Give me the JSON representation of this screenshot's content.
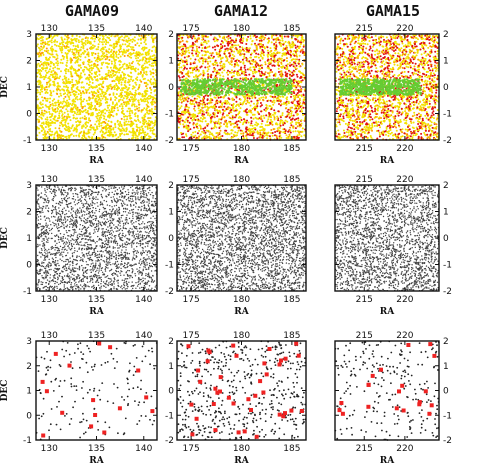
{
  "figure": {
    "columns": [
      {
        "title": "GAMA09",
        "xticks": [
          130,
          135,
          140
        ],
        "xlim": [
          128.6,
          141.4
        ],
        "yticks": [
          -1,
          0,
          1,
          2,
          3
        ],
        "ylim": [
          -1,
          3
        ]
      },
      {
        "title": "GAMA12",
        "xticks": [
          175,
          180,
          185
        ],
        "xlim": [
          173.6,
          186.4
        ],
        "yticks": [
          -2,
          -1,
          0,
          1,
          2
        ],
        "ylim": [
          -2,
          2
        ]
      },
      {
        "title": "GAMA15",
        "xticks": [
          215,
          220
        ],
        "xlim": [
          211.4,
          224.2
        ],
        "yticks": [
          -2,
          -1,
          0,
          1,
          2
        ],
        "ylim": [
          -2,
          2
        ]
      }
    ],
    "xlabel": "RA",
    "ylabel": "DEC",
    "colors": {
      "yellow": "#f2e200",
      "orange": "#ff9900",
      "red": "#e01010",
      "green": "#66cc33",
      "grey": "#444444",
      "marker_red": "#ee2222",
      "frame": "#111111"
    }
  },
  "chart_data": [
    {
      "type": "scatter",
      "panel": "GAMA09 row1",
      "xlabel": "RA",
      "ylabel": "DEC",
      "xlim": [
        128.6,
        141.4
      ],
      "ylim": [
        -1,
        3
      ],
      "series": [
        {
          "color": "#f2e200",
          "density": "very dense",
          "x_range": [
            129,
            141
          ],
          "y_range": [
            -1,
            3
          ]
        }
      ]
    },
    {
      "type": "scatter",
      "panel": "GAMA12 row1",
      "xlabel": "RA",
      "ylabel": "",
      "xlim": [
        173.6,
        186.4
      ],
      "ylim": [
        -2,
        2
      ],
      "series": [
        {
          "color": "#f2e200",
          "density": "very dense",
          "x_range": [
            174,
            186
          ],
          "y_range": [
            -2,
            2
          ]
        },
        {
          "color": "#e01010",
          "density": "dense",
          "x_range": [
            174,
            186
          ],
          "y_range": [
            -2,
            2
          ]
        },
        {
          "color": "#66cc33",
          "density": "band",
          "x_range": [
            174,
            185
          ],
          "y_range": [
            -0.3,
            0.3
          ]
        }
      ]
    },
    {
      "type": "scatter",
      "panel": "GAMA15 row1",
      "xlabel": "RA",
      "ylabel": "",
      "xlim": [
        211.4,
        224.2
      ],
      "ylim": [
        -2,
        2
      ],
      "series": [
        {
          "color": "#f2e200",
          "density": "very dense",
          "x_range": [
            212,
            224
          ],
          "y_range": [
            -2,
            2
          ]
        },
        {
          "color": "#e01010",
          "density": "dense",
          "x_range": [
            212,
            224
          ],
          "y_range": [
            -2,
            2
          ]
        },
        {
          "color": "#66cc33",
          "density": "band",
          "x_range": [
            212,
            222
          ],
          "y_range": [
            -0.3,
            0.3
          ]
        }
      ]
    },
    {
      "type": "scatter",
      "panel": "GAMA09 row2",
      "xlabel": "RA",
      "ylabel": "DEC",
      "xlim": [
        128.6,
        141.4
      ],
      "ylim": [
        -1,
        3
      ],
      "series": [
        {
          "color": "#444444",
          "density": "very dense",
          "x_range": [
            129,
            141
          ],
          "y_range": [
            -1,
            3
          ]
        }
      ]
    },
    {
      "type": "scatter",
      "panel": "GAMA12 row2",
      "xlabel": "RA",
      "ylabel": "",
      "xlim": [
        173.6,
        186.4
      ],
      "ylim": [
        -2,
        2
      ],
      "series": [
        {
          "color": "#444444",
          "density": "very dense",
          "x_range": [
            174,
            186
          ],
          "y_range": [
            -2,
            2
          ]
        }
      ]
    },
    {
      "type": "scatter",
      "panel": "GAMA15 row2",
      "xlabel": "RA",
      "ylabel": "",
      "xlim": [
        211.4,
        224.2
      ],
      "ylim": [
        -2,
        2
      ],
      "series": [
        {
          "color": "#444444",
          "density": "very dense",
          "x_range": [
            212,
            224
          ],
          "y_range": [
            -2,
            2
          ]
        }
      ]
    },
    {
      "type": "scatter",
      "panel": "GAMA09 row3",
      "xlabel": "RA",
      "ylabel": "DEC",
      "xlim": [
        128.6,
        141.4
      ],
      "ylim": [
        -1,
        3
      ],
      "series": [
        {
          "color": "#444444",
          "density": "sparse",
          "x_range": [
            129,
            141
          ],
          "y_range": [
            -1,
            3
          ]
        },
        {
          "color": "#ee2222",
          "density": "markers",
          "x_range": [
            129,
            141
          ],
          "y_range": [
            -1,
            3
          ]
        }
      ]
    },
    {
      "type": "scatter",
      "panel": "GAMA12 row3",
      "xlabel": "RA",
      "ylabel": "",
      "xlim": [
        173.6,
        186.4
      ],
      "ylim": [
        -2,
        2
      ],
      "series": [
        {
          "color": "#444444",
          "density": "sparse",
          "x_range": [
            174,
            186
          ],
          "y_range": [
            -2,
            2
          ]
        },
        {
          "color": "#ee2222",
          "density": "markers",
          "x_range": [
            174,
            186
          ],
          "y_range": [
            -2,
            2
          ]
        }
      ]
    },
    {
      "type": "scatter",
      "panel": "GAMA15 row3",
      "xlabel": "RA",
      "ylabel": "",
      "xlim": [
        211.4,
        224.2
      ],
      "ylim": [
        -2,
        2
      ],
      "series": [
        {
          "color": "#444444",
          "density": "sparse",
          "x_range": [
            212,
            224
          ],
          "y_range": [
            -2,
            2
          ]
        },
        {
          "color": "#ee2222",
          "density": "markers",
          "x_range": [
            212,
            224
          ],
          "y_range": [
            -2,
            2
          ]
        }
      ]
    }
  ]
}
